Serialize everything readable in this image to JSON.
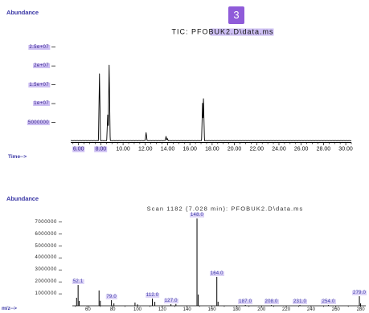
{
  "overlay_badge": {
    "text": "3",
    "color": "#8f5bd9"
  },
  "colors": {
    "label_text": "#3b38a6",
    "highlight": "#cdbff3",
    "trace": "#000000"
  },
  "chart_data": [
    {
      "type": "line",
      "title": "TIC: PFOBUK2.D\\data.ms",
      "ylabel": "Abundance",
      "xlabel": "Time-->",
      "xlim": [
        5.3,
        30.5
      ],
      "ylim": [
        0,
        26000000
      ],
      "grid": false,
      "x_ticks": [
        6,
        8,
        10,
        12,
        14,
        16,
        18,
        20,
        22,
        24,
        26,
        28,
        30
      ],
      "x_tick_labels": [
        "6.00",
        "8.00",
        "10.00",
        "12.00",
        "14.00",
        "16.00",
        "18.00",
        "20.00",
        "22.00",
        "24.00",
        "26.00",
        "28.00",
        "30.00"
      ],
      "y_ticks": [
        5000000,
        10000000,
        15000000,
        20000000,
        25000000
      ],
      "y_tick_labels": [
        "5000000",
        "1e+07",
        "1.5e+07",
        "2e+07",
        "2.5e+07"
      ],
      "series": [
        {
          "x": [
            7.88,
            8.62,
            8.75,
            12.07,
            13.86,
            13.98,
            17.14,
            17.22
          ],
          "y": [
            17900000,
            7000000,
            20200000,
            2300000,
            1300000,
            700000,
            10100000,
            11300000
          ]
        }
      ]
    },
    {
      "type": "bar",
      "title": "Scan 1182 (7.028 min): PFOBUK2.D\\data.ms",
      "ylabel": "Abundance",
      "xlabel": "m/z-->",
      "xlim": [
        45,
        285
      ],
      "ylim": [
        0,
        7600000
      ],
      "grid": false,
      "x_ticks": [
        60,
        80,
        100,
        120,
        140,
        160,
        180,
        200,
        220,
        240,
        260,
        280
      ],
      "x_tick_labels": [
        "60",
        "80",
        "100",
        "120",
        "140",
        "160",
        "180",
        "200",
        "220",
        "240",
        "260",
        "280"
      ],
      "y_ticks": [
        1000000,
        2000000,
        3000000,
        4000000,
        5000000,
        6000000,
        7000000
      ],
      "y_tick_labels": [
        "1000000",
        "2000000",
        "3000000",
        "4000000",
        "5000000",
        "6000000",
        "7000000"
      ],
      "series": [
        {
          "x": [
            50.9,
            52.1,
            53.0,
            69.0,
            70.0,
            79.0,
            81.0,
            98.0,
            100.0,
            112.0,
            114.0,
            127.0,
            131.0,
            148.0,
            149.0,
            164.0,
            165.0,
            187.0,
            208.0,
            231.0,
            254.0,
            279.0,
            280.0
          ],
          "y": [
            670000,
            1740000,
            400000,
            1280000,
            420000,
            470000,
            200000,
            270000,
            120000,
            600000,
            330000,
            130000,
            150000,
            7300000,
            940000,
            2420000,
            340000,
            70000,
            60000,
            60000,
            60000,
            800000,
            200000
          ]
        }
      ],
      "peak_labels": [
        {
          "x": 52.1,
          "text": "52.1"
        },
        {
          "x": 79.0,
          "text": "79.0"
        },
        {
          "x": 112.0,
          "text": "112.0"
        },
        {
          "x": 127.0,
          "text": "127.0"
        },
        {
          "x": 148.0,
          "text": "148.0"
        },
        {
          "x": 164.0,
          "text": "164.0"
        },
        {
          "x": 187.0,
          "text": "187.0"
        },
        {
          "x": 208.0,
          "text": "208.0"
        },
        {
          "x": 231.0,
          "text": "231.0"
        },
        {
          "x": 254.0,
          "text": "254.0"
        },
        {
          "x": 279.0,
          "text": "279.0"
        }
      ]
    }
  ]
}
